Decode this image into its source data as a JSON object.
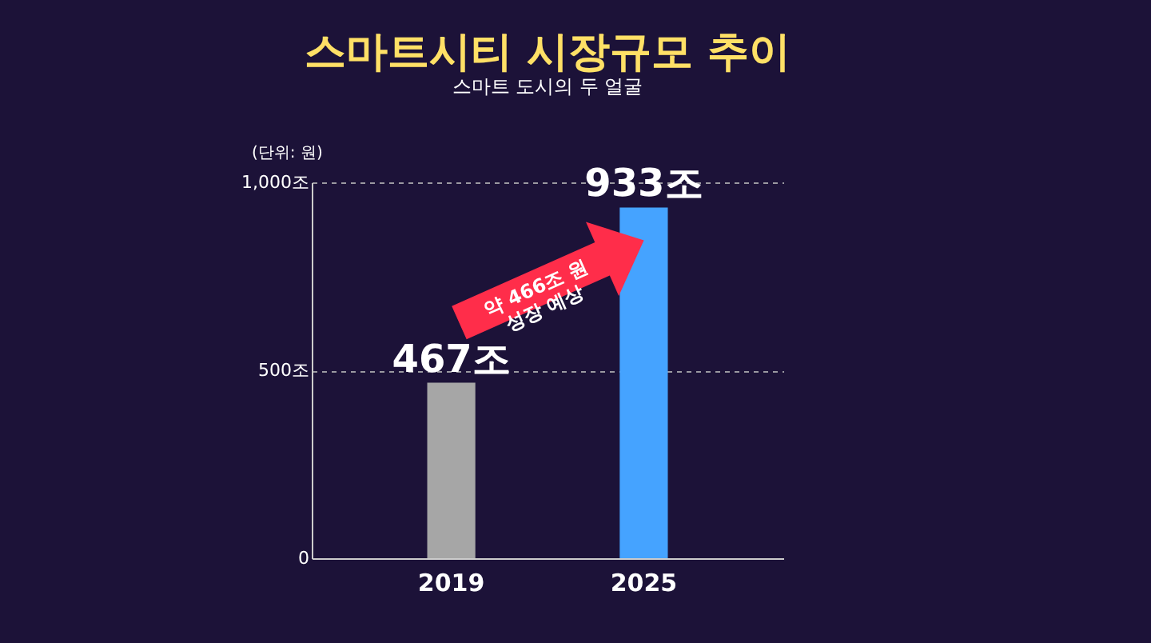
{
  "chart_data": {
    "type": "bar",
    "title": "스마트시티 시장규모 추이",
    "subtitle": "스마트 도시의 두 얼굴",
    "ylabel": "(단위: 원)",
    "categories": [
      "2019",
      "2025"
    ],
    "values": [
      467,
      933
    ],
    "colors": [
      "#a6a6a6",
      "#45a3ff"
    ],
    "value_labels": [
      "467조",
      "933조"
    ],
    "ylim": [
      0,
      1000
    ],
    "yticks": [
      0,
      {
        "value": 500,
        "label": "500조"
      },
      {
        "value": 1000,
        "label": "1,000조"
      }
    ],
    "grid": "y",
    "annotations": [
      "약 466조 원\n성장 예상"
    ]
  }
}
